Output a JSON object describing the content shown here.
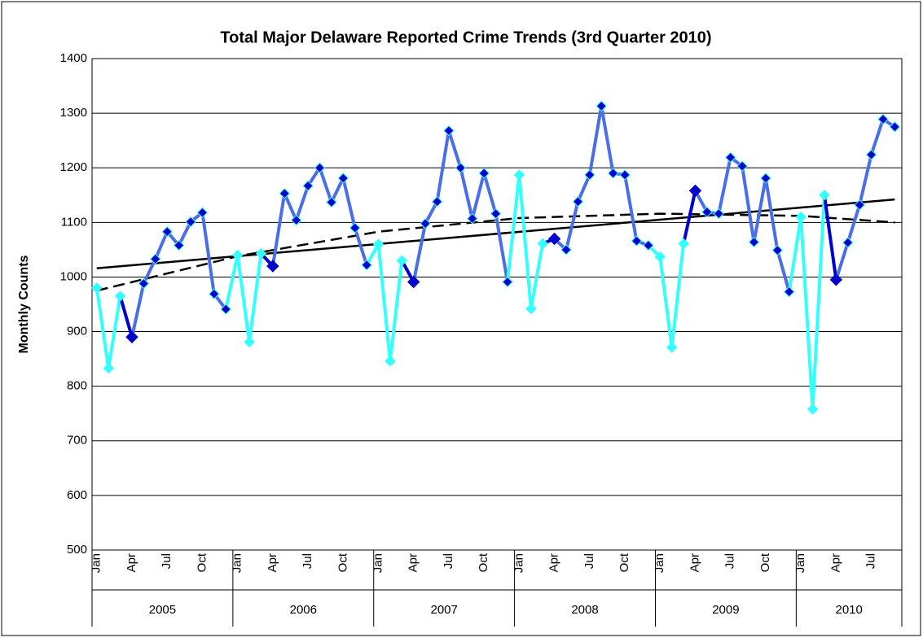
{
  "chart_data": {
    "type": "line",
    "title": "Total Major Delaware Reported Crime Trends (3rd Quarter 2010)",
    "y_label": "Monthly Counts",
    "categories": [
      "Jan",
      null,
      null,
      "Apr",
      null,
      null,
      "Jul",
      null,
      null,
      "Oct",
      null,
      null,
      "Jan",
      null,
      null,
      "Apr",
      null,
      null,
      "Jul",
      null,
      null,
      "Oct",
      null,
      null,
      "Jan",
      null,
      null,
      "Apr",
      null,
      null,
      "Jul",
      null,
      null,
      "Oct",
      null,
      null,
      "Jan",
      null,
      null,
      "Apr",
      null,
      null,
      "Jul",
      null,
      null,
      "Oct",
      null,
      null,
      "Jan",
      null,
      null,
      "Apr",
      null,
      null,
      "Jul",
      null,
      null,
      "Oct",
      null,
      null,
      "Jan",
      null,
      null,
      "Apr",
      null,
      null,
      "Jul",
      null,
      null
    ],
    "groups": [
      {
        "label": "2005",
        "span": 12
      },
      {
        "label": "2006",
        "span": 12
      },
      {
        "label": "2007",
        "span": 12
      },
      {
        "label": "2008",
        "span": 12
      },
      {
        "label": "2009",
        "span": 12
      },
      {
        "label": "2010",
        "span": 9
      }
    ],
    "values": [
      980,
      833,
      965,
      890,
      988,
      1033,
      1083,
      1058,
      1101,
      1118,
      969,
      941,
      1040,
      881,
      1043,
      1020,
      1153,
      1104,
      1167,
      1200,
      1137,
      1181,
      1090,
      1022,
      1060,
      846,
      1030,
      991,
      1098,
      1138,
      1268,
      1200,
      1107,
      1190,
      1116,
      991,
      1187,
      942,
      1061,
      1070,
      1050,
      1138,
      1187,
      1313,
      1190,
      1187,
      1066,
      1058,
      1037,
      871,
      1061,
      1158,
      1119,
      1116,
      1219,
      1203,
      1064,
      1181,
      1049,
      973,
      1110,
      758,
      1150,
      995,
      1063,
      1132,
      1224,
      1289,
      1275
    ],
    "colors": {
      "winter": "#33ffff",
      "spring": "#0000cc",
      "rest": "#4a6ee8",
      "marker": "#0000cc"
    },
    "trends": [
      {
        "style": "solid",
        "x": [
          0,
          68
        ],
        "values": [
          1016,
          1142
        ]
      },
      {
        "style": "dashed",
        "x": [
          0,
          12,
          24,
          36,
          48,
          60,
          68
        ],
        "values": [
          975,
          1038,
          1083,
          1108,
          1116,
          1112,
          1100
        ]
      }
    ],
    "ylim": [
      500,
      1400
    ],
    "yticks": [
      500,
      600,
      700,
      800,
      900,
      1000,
      1100,
      1200,
      1300,
      1400
    ],
    "grid": true
  }
}
